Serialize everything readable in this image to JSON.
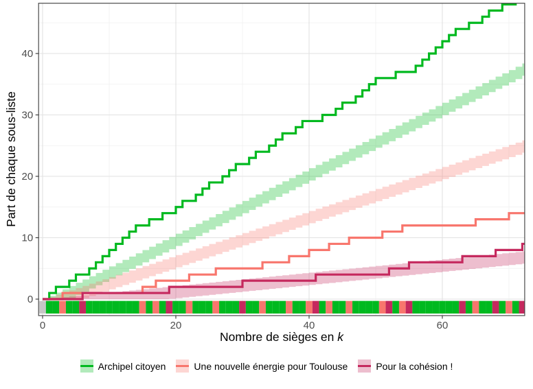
{
  "chart_data": {
    "type": "line",
    "subtype": "step-lines with quota ribbons and seat rug",
    "title": "",
    "xlabel": "Nombre de sièges en k",
    "xlabel_prefix": "Nombre de sièges en ",
    "xlabel_var": "k",
    "ylabel": "Part de chaque sous-liste",
    "x_ticks": [
      0,
      20,
      40,
      60
    ],
    "x_minor_gridlines": [
      10,
      30,
      50,
      70
    ],
    "y_ticks": [
      0,
      10,
      20,
      30,
      40
    ],
    "y_minor_gridlines": [
      5,
      15,
      25,
      35,
      45
    ],
    "xlim": [
      -0.6,
      72.35
    ],
    "ylim": [
      -2.65,
      48.0
    ],
    "grid": "on",
    "legend_position": "bottom",
    "total_seats": 72,
    "series": [
      {
        "code": "A",
        "name": "Archipel citoyen",
        "color": "#00B91F",
        "vote_share": 0.533,
        "final_seats": 49
      },
      {
        "code": "N",
        "name": "Une nouvelle énergie pour Toulouse",
        "color": "#F8766D",
        "vote_share": 0.359,
        "final_seats": 14
      },
      {
        "code": "C",
        "name": "Pour la cohésion !",
        "color": "#C5295E",
        "vote_share": 0.108,
        "final_seats": 9
      }
    ],
    "ribbon": {
      "description": "stepped band k*vote_share + offset",
      "offset_low": -2,
      "offset_high": 0,
      "fill_alpha": 0.3
    },
    "rug": {
      "na_color": "#C6C6C6",
      "description": "sub-list owning each successive seat position k"
    },
    "seat_order": [
      "none",
      "A",
      "A",
      "N",
      "A",
      "A",
      "C",
      "A",
      "A",
      "A",
      "A",
      "A",
      "A",
      "A",
      "A",
      "N",
      "A",
      "N",
      "A",
      "C",
      "A",
      "A",
      "N",
      "A",
      "A",
      "A",
      "N",
      "A",
      "A",
      "A",
      "C",
      "A",
      "A",
      "N",
      "A",
      "A",
      "A",
      "N",
      "A",
      "A",
      "N",
      "C",
      "A",
      "N",
      "A",
      "A",
      "N",
      "A",
      "A",
      "A",
      "A",
      "N",
      "C",
      "A",
      "N",
      "C",
      "A",
      "A",
      "A",
      "A",
      "A",
      "A",
      "A",
      "C",
      "A",
      "N",
      "A",
      "A",
      "C",
      "A",
      "N",
      "A",
      "C"
    ]
  },
  "style": {
    "panel_border_color": "#4A4A4A",
    "grid_major_color": "#E2E2E2",
    "grid_minor_color": "#F0F0F0",
    "tick_color": "#333333",
    "tick_label_color": "#4D4D4D",
    "axis_title_color": "#000000",
    "background": "#FFFFFF"
  }
}
